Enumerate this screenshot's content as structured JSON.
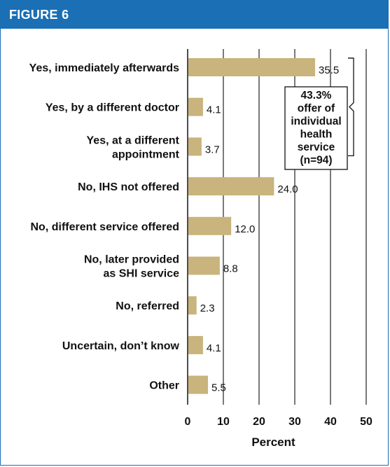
{
  "figure_label": "FIGURE 6",
  "chart_data": {
    "type": "bar",
    "orientation": "horizontal",
    "categories": [
      [
        "Yes, immediately afterwards"
      ],
      [
        "Yes, by a different doctor"
      ],
      [
        "Yes, at a different",
        "appointment"
      ],
      [
        "No, IHS not offered"
      ],
      [
        "No, different service offered"
      ],
      [
        "No, later provided",
        "as SHI service"
      ],
      [
        "No, referred"
      ],
      [
        "Uncertain, don’t know"
      ],
      [
        "Other"
      ]
    ],
    "values": [
      35.5,
      4.1,
      3.7,
      24.0,
      12.0,
      8.8,
      2.3,
      4.1,
      5.5
    ],
    "value_labels": [
      "35.5",
      "4.1",
      "3.7",
      "24.0",
      "12.0",
      "8.8",
      "2.3",
      "4.1",
      "5.5"
    ],
    "xlim": [
      0,
      50
    ],
    "xticks": [
      0,
      10,
      20,
      30,
      40,
      50
    ],
    "xtick_labels": [
      "0",
      "10",
      "20",
      "30",
      "40",
      "50"
    ],
    "xlabel": "Percent",
    "grid": true,
    "bar_color": "#c8b47c",
    "annotation": {
      "lines": [
        "43.3%",
        "offer of",
        "individual",
        "health",
        "service",
        "(n=94)"
      ],
      "spans_categories": [
        0,
        2
      ]
    }
  }
}
